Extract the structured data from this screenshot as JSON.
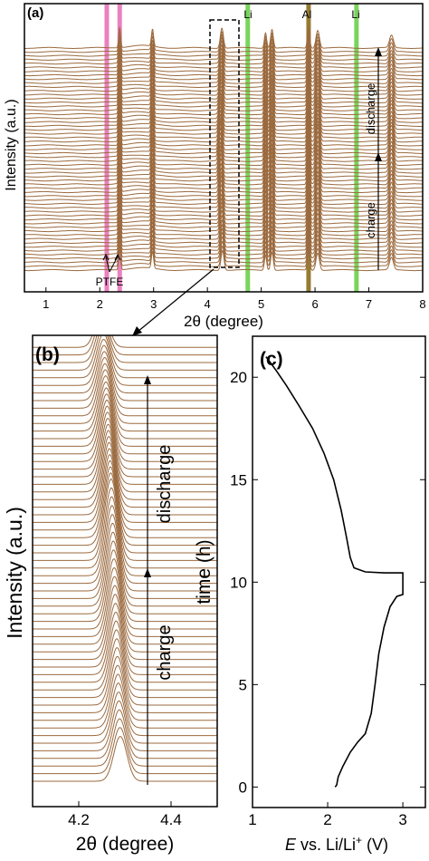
{
  "chart_data": [
    {
      "panel": "(a)",
      "type": "line",
      "xlabel": "2θ (degree)",
      "ylabel": "Intensity (a.u.)",
      "xlim": [
        0.6,
        8.0
      ],
      "xticks": [
        1,
        2,
        3,
        4,
        5,
        6,
        7,
        8
      ],
      "yticks": [],
      "grid": false,
      "annotations": [
        {
          "text": "PTFE",
          "x": 2.25
        },
        {
          "text": "Li",
          "x": 4.75
        },
        {
          "text": "Al",
          "x": 5.88
        },
        {
          "text": "Li",
          "x": 6.77
        },
        {
          "text": "charge",
          "x": 7.25
        },
        {
          "text": "discharge",
          "x": 7.25
        }
      ],
      "marker_lines": [
        {
          "x": 2.13,
          "color": "#e873b8"
        },
        {
          "x": 2.37,
          "color": "#e873b8"
        },
        {
          "x": 4.75,
          "color": "#6bcf4a"
        },
        {
          "x": 5.88,
          "color": "#8b6d1c"
        },
        {
          "x": 6.77,
          "color": "#6bcf4a"
        }
      ],
      "trace_count": 58,
      "trace_color": "#9b6a3f",
      "peaks": [
        {
          "center": 2.37,
          "height": 2.6,
          "width": 0.025
        },
        {
          "center": 2.98,
          "height": 2.2,
          "width": 0.028
        },
        {
          "center": 4.28,
          "height": 2.6,
          "width": 0.04,
          "shift_charge": 0.04,
          "shift_discharge": 0.03
        },
        {
          "center": 5.08,
          "height": 2.0,
          "width": 0.03
        },
        {
          "center": 5.2,
          "height": 2.4,
          "width": 0.035
        },
        {
          "center": 5.88,
          "height": 2.8,
          "width": 0.03
        },
        {
          "center": 6.05,
          "height": 2.3,
          "width": 0.045
        },
        {
          "center": 7.42,
          "height": 1.6,
          "width": 0.05
        }
      ]
    },
    {
      "panel": "(b)",
      "type": "line",
      "xlabel": "2θ (degree)",
      "ylabel": "Intensity (a.u.)",
      "xlim": [
        4.1,
        4.5
      ],
      "xticks": [
        4.2,
        4.4
      ],
      "yticks": [],
      "grid": false,
      "annotations": [
        {
          "text": "charge",
          "x": 4.42
        },
        {
          "text": "discharge",
          "x": 4.42
        }
      ],
      "trace_count": 58,
      "trace_color": "#9b6a3f",
      "peak_start": 4.29,
      "peak_turn": 4.27,
      "peak_end": 4.25,
      "peak_width": 0.02
    },
    {
      "panel": "(c)",
      "type": "line",
      "xlabel": "E vs. Li/Li+ (V)",
      "ylabel": "time (h)",
      "xlim": [
        1.0,
        3.3
      ],
      "ylim": [
        -1.0,
        22.0
      ],
      "xticks": [
        1,
        2,
        3
      ],
      "yticks": [
        0,
        5,
        10,
        15,
        20
      ],
      "grid": false,
      "series": [
        {
          "points": [
            [
              2.1,
              0.0
            ],
            [
              2.12,
              0.1
            ],
            [
              2.14,
              0.5
            ],
            [
              2.2,
              1.0
            ],
            [
              2.3,
              1.7
            ],
            [
              2.4,
              2.2
            ],
            [
              2.5,
              2.6
            ],
            [
              2.58,
              3.6
            ],
            [
              2.63,
              5.0
            ],
            [
              2.68,
              6.5
            ],
            [
              2.75,
              7.8
            ],
            [
              2.83,
              8.8
            ],
            [
              2.92,
              9.3
            ],
            [
              3.0,
              9.4
            ],
            [
              3.0,
              10.45
            ],
            [
              2.75,
              10.45
            ],
            [
              2.5,
              10.5
            ],
            [
              2.35,
              10.7
            ],
            [
              2.3,
              11.2
            ],
            [
              2.25,
              12.2
            ],
            [
              2.18,
              13.5
            ],
            [
              2.08,
              15.0
            ],
            [
              1.95,
              16.3
            ],
            [
              1.8,
              17.5
            ],
            [
              1.62,
              18.6
            ],
            [
              1.45,
              19.6
            ],
            [
              1.32,
              20.3
            ],
            [
              1.22,
              20.8
            ],
            [
              1.18,
              21.0
            ]
          ]
        }
      ]
    }
  ]
}
